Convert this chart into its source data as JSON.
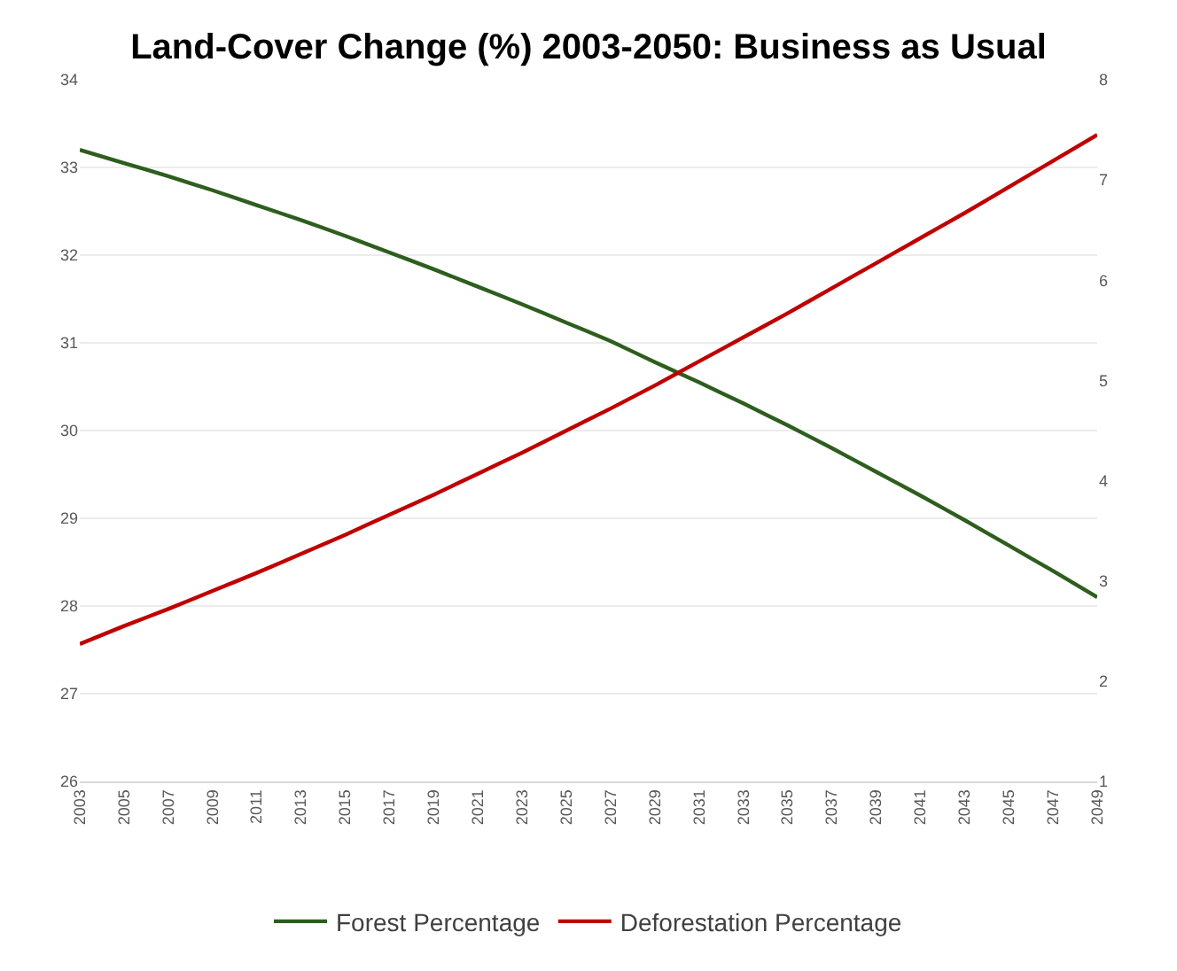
{
  "chart_data": {
    "type": "line",
    "title": "Land-Cover Change (%) 2003-2050: Business as Usual",
    "x": [
      2003,
      2005,
      2007,
      2009,
      2011,
      2013,
      2015,
      2017,
      2019,
      2021,
      2023,
      2025,
      2027,
      2029,
      2031,
      2033,
      2035,
      2037,
      2039,
      2041,
      2043,
      2045,
      2047,
      2049
    ],
    "series": [
      {
        "name": "Forest Percentage",
        "color": "#2e5e1e",
        "values": [
          33.2,
          33.05,
          32.9,
          32.74,
          32.57,
          32.4,
          32.22,
          32.03,
          31.84,
          31.64,
          31.44,
          31.23,
          31.02,
          30.78,
          30.55,
          30.31,
          30.06,
          29.8,
          29.53,
          29.26,
          28.98,
          28.69,
          28.4,
          28.1
        ]
      },
      {
        "name": "Deforestation Percentage",
        "color": "#c00000",
        "axis": "y2",
        "values": [
          2.37,
          2.55,
          2.72,
          2.9,
          3.08,
          3.27,
          3.46,
          3.66,
          3.86,
          4.07,
          4.28,
          4.5,
          4.72,
          4.95,
          5.19,
          5.43,
          5.67,
          5.92,
          6.17,
          6.42,
          6.67,
          6.93,
          7.19,
          7.45
        ]
      }
    ],
    "xlim": [
      2003,
      2049
    ],
    "xticks": [
      2003,
      2005,
      2007,
      2009,
      2011,
      2013,
      2015,
      2017,
      2019,
      2021,
      2023,
      2025,
      2027,
      2029,
      2031,
      2033,
      2035,
      2037,
      2039,
      2041,
      2043,
      2045,
      2047,
      2049
    ],
    "ylim": [
      26,
      34
    ],
    "yticks": [
      26,
      27,
      28,
      29,
      30,
      31,
      32,
      33,
      34
    ],
    "y2lim": [
      1,
      8
    ],
    "y2ticks": [
      1,
      2,
      3,
      4,
      5,
      6,
      7,
      8
    ],
    "grid": "y",
    "legend": "bottom",
    "marker": "none",
    "line_style": "solid"
  }
}
